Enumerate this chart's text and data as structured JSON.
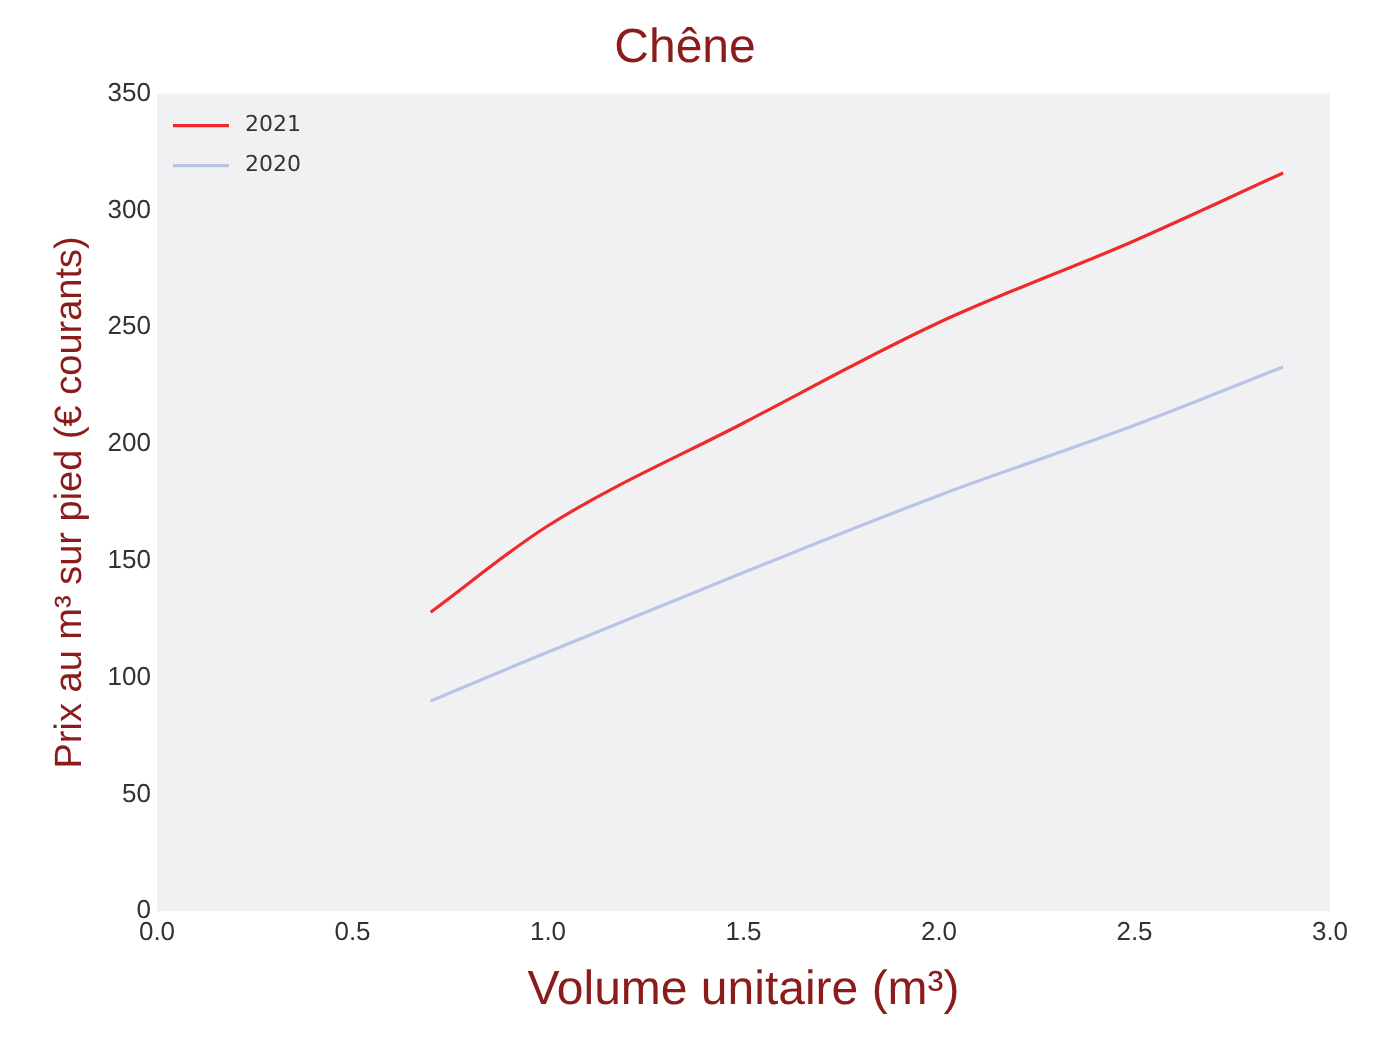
{
  "chart_data": {
    "type": "line",
    "title": "Chêne",
    "xlabel": "Volume unitaire (m³)",
    "ylabel": "Prix au m³ sur pied (€ courants)",
    "x": [
      0.7,
      1.0,
      1.5,
      2.0,
      2.5,
      2.88
    ],
    "series": [
      {
        "name": "2021",
        "color": "#ee2a2a",
        "values": [
          128,
          165,
          209,
          252,
          287,
          316
        ]
      },
      {
        "name": "2020",
        "color": "#b8c4e6",
        "values": [
          90,
          111,
          145,
          178,
          208,
          233
        ]
      }
    ],
    "xlim": [
      0,
      3
    ],
    "xticks": [
      {
        "value": 0,
        "label": "0.0"
      },
      {
        "value": 0.5,
        "label": "0.5"
      },
      {
        "value": 1,
        "label": "1.0"
      },
      {
        "value": 1.5,
        "label": "1.5"
      },
      {
        "value": 2,
        "label": "2.0"
      },
      {
        "value": 2.5,
        "label": "2.5"
      },
      {
        "value": 3,
        "label": "3.0"
      }
    ],
    "ylim": [
      0,
      350
    ],
    "yticks": [
      0,
      50,
      100,
      150,
      200,
      250,
      300,
      350
    ],
    "legend": "top left",
    "marker": "none",
    "line_style": "solid"
  }
}
